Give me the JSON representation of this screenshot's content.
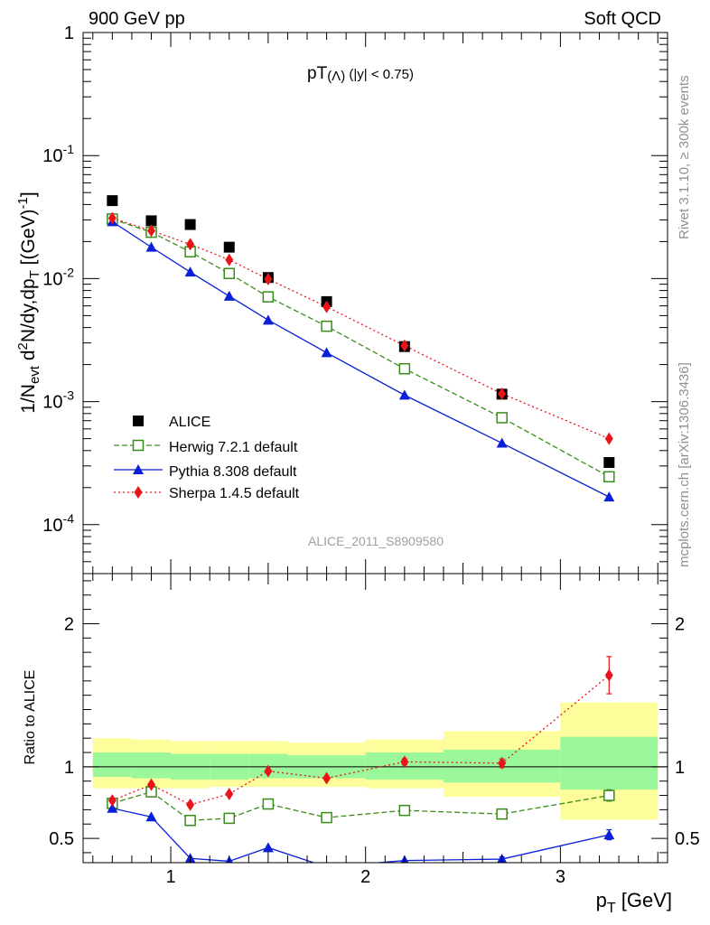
{
  "header": {
    "left": "900 GeV pp",
    "right": "Soft QCD"
  },
  "side_text": {
    "rivet": "Rivet 3.1.10, ≥ 300k events",
    "mcplots": "mcplots.cern.ch [arXiv:1306.3436]"
  },
  "analysis_id": "ALICE_2011_S8909580",
  "colors": {
    "data": "#000000",
    "herwig": "#3a8c1a",
    "pythia": "#0a1fd8",
    "sherpa": "#e8141a",
    "band_inner": "#9af79a",
    "band_outer": "#fdfd9b"
  },
  "chart_data": [
    {
      "type": "scatter",
      "title": "pT(Λ) (|y| < 0.75)",
      "title_main": "pT",
      "title_sub": "(Λ)",
      "title_rest": " (|y| < 0.75)",
      "ylabel": "1/N_evt d²N/dy,dp_T [(GeV)⁻¹]",
      "ylabel_parts": {
        "a": "1/N",
        "b": "evt",
        "c": " d",
        "d": "2",
        "e": "N/dy,dp",
        "f": "T",
        "g": " [(GeV)",
        "h": "-1",
        "i": "]"
      },
      "yscale": "log",
      "ylim": [
        4e-05,
        1
      ],
      "xlim": [
        0.55,
        3.55
      ],
      "ytick_labels": [
        {
          "value": 1,
          "base": "1",
          "exp": ""
        },
        {
          "value": 0.1,
          "base": "10",
          "exp": "-1"
        },
        {
          "value": 0.01,
          "base": "10",
          "exp": "-2"
        },
        {
          "value": 0.001,
          "base": "10",
          "exp": "-3"
        },
        {
          "value": 0.0001,
          "base": "10",
          "exp": "-4"
        }
      ],
      "x": [
        0.7,
        0.9,
        1.1,
        1.3,
        1.5,
        1.8,
        2.2,
        2.7,
        3.25
      ],
      "series": [
        {
          "name": "ALICE",
          "key": "data",
          "marker": "square",
          "line": "none",
          "values": [
            0.043,
            0.0295,
            0.0275,
            0.018,
            0.0102,
            0.0065,
            0.0028,
            0.00115,
            0.00032
          ]
        },
        {
          "name": "Herwig 7.2.1 default",
          "key": "herwig",
          "marker": "open-square",
          "line": "dashed",
          "values": [
            0.0305,
            0.0238,
            0.0165,
            0.011,
            0.0071,
            0.0041,
            0.00185,
            0.00074,
            0.000245
          ]
        },
        {
          "name": "Pythia 8.308 default",
          "key": "pythia",
          "marker": "triangle",
          "line": "solid",
          "values": [
            0.029,
            0.018,
            0.0113,
            0.0072,
            0.0046,
            0.0025,
            0.00113,
            0.00046,
            0.000168
          ]
        },
        {
          "name": "Sherpa 1.4.5 default",
          "key": "sherpa",
          "marker": "diamond",
          "line": "dotted",
          "values": [
            0.031,
            0.0245,
            0.019,
            0.0142,
            0.0099,
            0.0059,
            0.00285,
            0.00116,
            0.0005
          ]
        }
      ],
      "legend_position": "lower-left"
    },
    {
      "type": "scatter",
      "ylabel": "Ratio to ALICE",
      "xlabel": "p_T [GeV]",
      "xlabel_main": "p",
      "xlabel_sub": "T",
      "xlabel_rest": " [GeV]",
      "ylim": [
        0.33,
        2.35
      ],
      "xlim": [
        0.55,
        3.55
      ],
      "reference_line": 1,
      "ytick_labels": [
        {
          "value": 0.5,
          "label": "0.5"
        },
        {
          "value": 1,
          "label": "1"
        },
        {
          "value": 2,
          "label": "2"
        }
      ],
      "xtick_labels": [
        {
          "value": 1,
          "label": "1"
        },
        {
          "value": 2,
          "label": "2"
        },
        {
          "value": 3,
          "label": "3"
        }
      ],
      "uncertainty_bands": [
        {
          "x_range": [
            0.6,
            0.8
          ],
          "inner": [
            0.93,
            1.1
          ],
          "outer": [
            0.85,
            1.2
          ]
        },
        {
          "x_range": [
            0.8,
            1.0
          ],
          "inner": [
            0.92,
            1.1
          ],
          "outer": [
            0.85,
            1.19
          ]
        },
        {
          "x_range": [
            1.0,
            1.2
          ],
          "inner": [
            0.91,
            1.09
          ],
          "outer": [
            0.85,
            1.18
          ]
        },
        {
          "x_range": [
            1.2,
            1.4
          ],
          "inner": [
            0.91,
            1.09
          ],
          "outer": [
            0.86,
            1.18
          ]
        },
        {
          "x_range": [
            1.4,
            1.6
          ],
          "inner": [
            0.92,
            1.09
          ],
          "outer": [
            0.86,
            1.18
          ]
        },
        {
          "x_range": [
            1.6,
            2.0
          ],
          "inner": [
            0.92,
            1.08
          ],
          "outer": [
            0.86,
            1.17
          ]
        },
        {
          "x_range": [
            2.0,
            2.4
          ],
          "inner": [
            0.91,
            1.1
          ],
          "outer": [
            0.85,
            1.19
          ]
        },
        {
          "x_range": [
            2.4,
            3.0
          ],
          "inner": [
            0.89,
            1.12
          ],
          "outer": [
            0.79,
            1.25
          ]
        },
        {
          "x_range": [
            3.0,
            3.5
          ],
          "inner": [
            0.84,
            1.21
          ],
          "outer": [
            0.63,
            1.45
          ]
        }
      ],
      "x": [
        0.7,
        0.9,
        1.1,
        1.3,
        1.5,
        1.8,
        2.2,
        2.7,
        3.25
      ],
      "series": [
        {
          "name": "Herwig 7.2.1 default",
          "key": "herwig",
          "marker": "open-square",
          "line": "dashed",
          "values": [
            0.745,
            0.825,
            0.625,
            0.64,
            0.74,
            0.645,
            0.695,
            0.67,
            0.8
          ],
          "errors": [
            0,
            0,
            0,
            0,
            0,
            0,
            0,
            0,
            0.04
          ]
        },
        {
          "name": "Pythia 8.308 default",
          "key": "pythia",
          "marker": "triangle",
          "line": "solid",
          "values": [
            0.71,
            0.65,
            0.36,
            0.34,
            0.435,
            0.3,
            0.345,
            0.355,
            0.525
          ],
          "errors": [
            0,
            0,
            0,
            0,
            0,
            0,
            0,
            0.015,
            0.035
          ]
        },
        {
          "name": "Sherpa 1.4.5 default",
          "key": "sherpa",
          "marker": "diamond",
          "line": "dotted",
          "values": [
            0.765,
            0.875,
            0.735,
            0.81,
            0.97,
            0.92,
            1.035,
            1.025,
            1.64
          ],
          "errors": [
            0,
            0,
            0,
            0,
            0,
            0,
            0.02,
            0.03,
            0.13
          ]
        }
      ]
    }
  ]
}
